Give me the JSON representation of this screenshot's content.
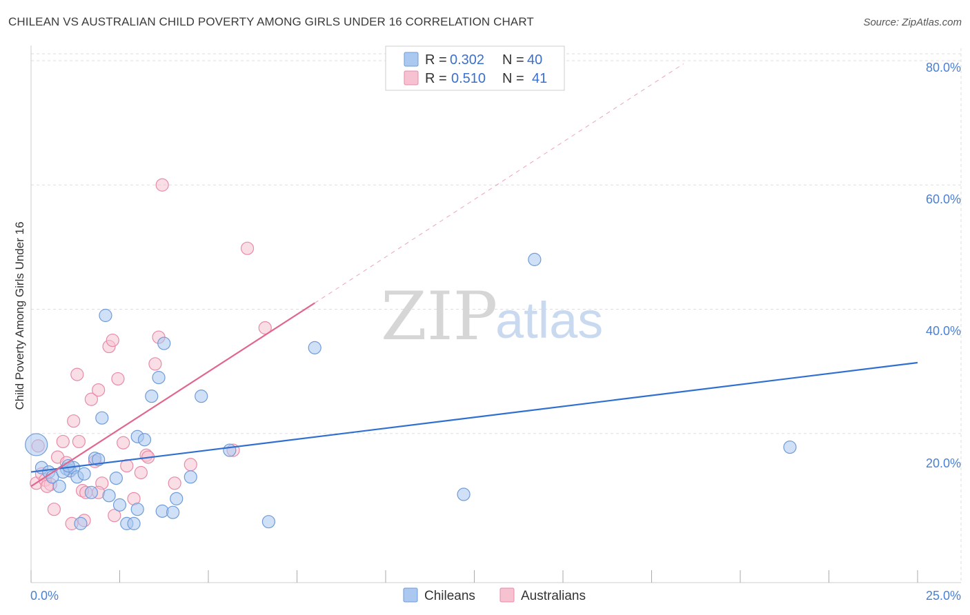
{
  "title": "CHILEAN VS AUSTRALIAN CHILD POVERTY AMONG GIRLS UNDER 16 CORRELATION CHART",
  "source": "Source: ZipAtlas.com",
  "watermark": {
    "zip": "ZIP",
    "atlas": "atlas"
  },
  "legend": {
    "rows": [
      {
        "r_label": "R = ",
        "r_value": "0.302",
        "n_label": "N = ",
        "n_value": "40"
      },
      {
        "r_label": "R = ",
        "r_value": "0.510",
        "n_label": "N = ",
        "n_value": "41"
      }
    ]
  },
  "bottom_legend": [
    "Chileans",
    "Australians"
  ],
  "colors": {
    "blue_fill": "#aac8f0",
    "blue_stroke": "#6f9bd8",
    "blue_line": "#2f6fd0",
    "pink_fill": "#f6c2d2",
    "pink_stroke": "#e88aa8",
    "pink_line": "#e0668e",
    "grid": "#dddddd",
    "axis_label": "#4a7fd4"
  },
  "chart_data": {
    "type": "scatter",
    "xlabel": "",
    "ylabel": "Child Poverty Among Girls Under 16",
    "xlim": [
      0,
      25
    ],
    "ylim": [
      -4,
      82
    ],
    "x_tick_labels": [
      "0.0%",
      "25.0%"
    ],
    "y_ticks": [
      20,
      40,
      60,
      80
    ],
    "y_tick_labels": [
      "20.0%",
      "40.0%",
      "60.0%",
      "80.0%"
    ],
    "grid": true,
    "series": [
      {
        "name": "Chileans",
        "R": 0.302,
        "N": 40,
        "points": [
          [
            0.15,
            18.2,
            16
          ],
          [
            0.3,
            14.5,
            9
          ],
          [
            0.5,
            13.8,
            9
          ],
          [
            0.6,
            13.0,
            9
          ],
          [
            0.8,
            11.5,
            9
          ],
          [
            1.0,
            14.3,
            9
          ],
          [
            1.1,
            14.0,
            9
          ],
          [
            1.2,
            14.5,
            9
          ],
          [
            1.3,
            13.0,
            9
          ],
          [
            1.5,
            13.5,
            9
          ],
          [
            1.4,
            5.5,
            9
          ],
          [
            1.8,
            16.0,
            9
          ],
          [
            1.9,
            15.8,
            9
          ],
          [
            2.0,
            22.5,
            9
          ],
          [
            2.1,
            39.0,
            9
          ],
          [
            2.2,
            10.0,
            9
          ],
          [
            2.4,
            12.8,
            9
          ],
          [
            2.5,
            8.5,
            9
          ],
          [
            2.7,
            5.5,
            9
          ],
          [
            2.9,
            5.5,
            9
          ],
          [
            3.0,
            19.5,
            9
          ],
          [
            3.0,
            7.8,
            9
          ],
          [
            3.2,
            19.0,
            9
          ],
          [
            3.4,
            26.0,
            9
          ],
          [
            3.6,
            29.0,
            9
          ],
          [
            3.7,
            7.5,
            9
          ],
          [
            3.75,
            34.5,
            9
          ],
          [
            4.0,
            7.3,
            9
          ],
          [
            4.1,
            9.5,
            9
          ],
          [
            4.5,
            13.0,
            9
          ],
          [
            4.8,
            26.0,
            9
          ],
          [
            5.6,
            17.3,
            9
          ],
          [
            6.7,
            5.8,
            9
          ],
          [
            8.0,
            33.8,
            9
          ],
          [
            12.2,
            10.2,
            9
          ],
          [
            14.2,
            48.0,
            9
          ],
          [
            21.4,
            17.8,
            9
          ],
          [
            0.9,
            13.8,
            9
          ],
          [
            1.7,
            10.5,
            9
          ],
          [
            1.05,
            14.8,
            9
          ]
        ],
        "trendline": {
          "x": [
            0,
            25
          ],
          "y": [
            13.8,
            31.4
          ]
        }
      },
      {
        "name": "Australians",
        "R": 0.51,
        "N": 41,
        "points": [
          [
            0.15,
            12.0,
            9
          ],
          [
            0.3,
            13.5,
            9
          ],
          [
            0.4,
            12.5,
            9
          ],
          [
            0.55,
            11.8,
            9
          ],
          [
            0.65,
            7.8,
            9
          ],
          [
            0.75,
            16.2,
            9
          ],
          [
            0.9,
            18.7,
            9
          ],
          [
            1.0,
            15.3,
            9
          ],
          [
            1.1,
            14.0,
            9
          ],
          [
            1.2,
            22.0,
            9
          ],
          [
            1.3,
            29.5,
            9
          ],
          [
            1.35,
            18.7,
            9
          ],
          [
            1.45,
            10.8,
            9
          ],
          [
            1.5,
            6.0,
            9
          ],
          [
            1.55,
            10.5,
            9
          ],
          [
            1.7,
            25.5,
            9
          ],
          [
            1.8,
            15.5,
            9
          ],
          [
            1.9,
            27.0,
            9
          ],
          [
            2.0,
            12.0,
            9
          ],
          [
            2.2,
            34.0,
            9
          ],
          [
            2.3,
            35.0,
            9
          ],
          [
            2.45,
            28.8,
            9
          ],
          [
            2.6,
            18.5,
            9
          ],
          [
            2.7,
            14.8,
            9
          ],
          [
            2.9,
            9.5,
            9
          ],
          [
            3.1,
            13.7,
            9
          ],
          [
            3.25,
            16.5,
            9
          ],
          [
            3.3,
            16.2,
            9
          ],
          [
            3.5,
            31.2,
            9
          ],
          [
            3.6,
            35.5,
            9
          ],
          [
            3.7,
            60.0,
            9
          ],
          [
            4.05,
            12.0,
            9
          ],
          [
            4.5,
            15.0,
            9
          ],
          [
            5.7,
            17.3,
            9
          ],
          [
            6.1,
            49.8,
            9
          ],
          [
            6.6,
            37.0,
            9
          ],
          [
            0.2,
            18.0,
            9
          ],
          [
            1.15,
            5.5,
            9
          ],
          [
            2.35,
            6.8,
            9
          ],
          [
            0.45,
            11.5,
            9
          ],
          [
            1.9,
            10.5,
            9
          ]
        ],
        "trendline": {
          "x": [
            0,
            8
          ],
          "y": [
            11.5,
            41.0
          ]
        },
        "trendline_extension": {
          "x": [
            8,
            18.4
          ],
          "y": [
            41.0,
            79.5
          ]
        }
      }
    ]
  }
}
